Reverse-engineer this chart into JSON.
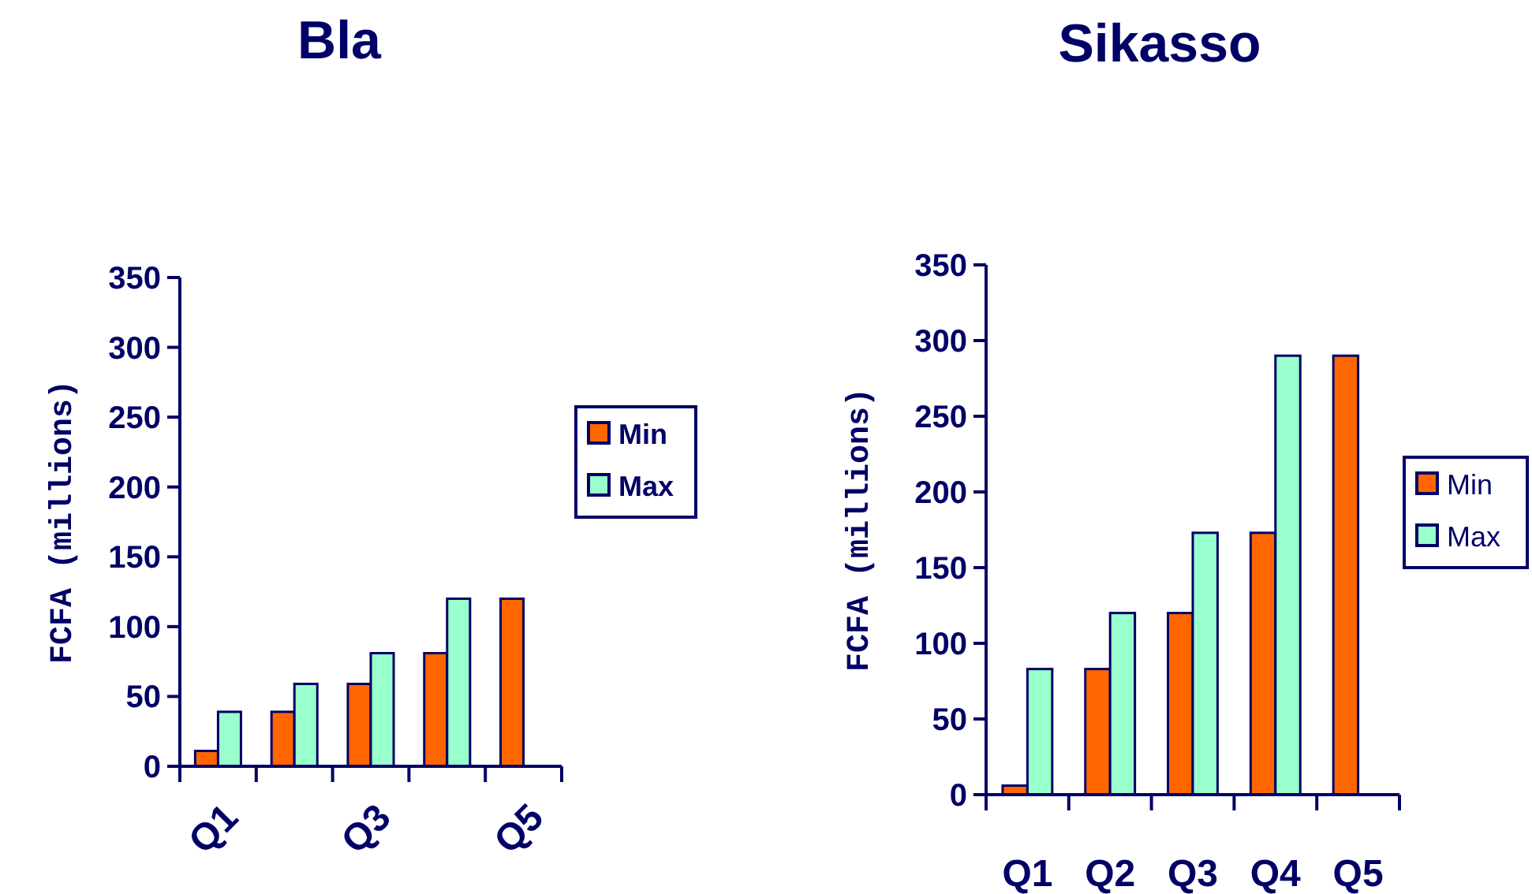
{
  "chart_data": [
    {
      "type": "bar",
      "title": "Bla",
      "ylabel": "FCFA (millions)",
      "categories": [
        "Q1",
        null,
        "Q3",
        null,
        "Q5"
      ],
      "ylim": [
        0,
        350
      ],
      "yticks": [
        0,
        50,
        100,
        150,
        200,
        250,
        300,
        350
      ],
      "legend": "right",
      "grid": false,
      "series": [
        {
          "name": "Min",
          "color": "#ff6600",
          "values": [
            11,
            39,
            59,
            81,
            120
          ]
        },
        {
          "name": "Max",
          "color": "#99ffcc",
          "values": [
            39,
            59,
            81,
            120,
            null
          ]
        }
      ]
    },
    {
      "type": "bar",
      "title": "Sikasso",
      "ylabel": "FCFA (millions)",
      "categories": [
        "Q1",
        "Q2",
        "Q3",
        "Q4",
        "Q5"
      ],
      "ylim": [
        0,
        350
      ],
      "yticks": [
        0,
        50,
        100,
        150,
        200,
        250,
        300,
        350
      ],
      "legend": "right",
      "grid": false,
      "series": [
        {
          "name": "Min",
          "color": "#ff6600",
          "values": [
            6,
            83,
            120,
            173,
            290
          ]
        },
        {
          "name": "Max",
          "color": "#99ffcc",
          "values": [
            83,
            120,
            173,
            290,
            null
          ]
        }
      ]
    }
  ]
}
